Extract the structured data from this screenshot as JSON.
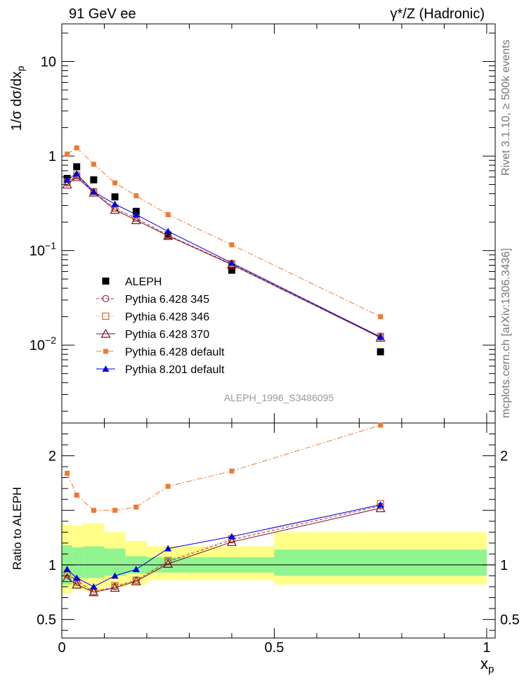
{
  "header": {
    "left_title": "91 GeV ee",
    "right_title": "γ*/Z (Hadronic)"
  },
  "side_text": {
    "rivet": "Rivet 3.1.10, ≥ 500k events",
    "mcplots": "mcplots.cern.ch [arXiv:1306.3436]"
  },
  "watermark": "ALEPH_1996_S3486095",
  "chart_data": {
    "type": "line",
    "upper": {
      "ylabel": "1/σ dσ/dx_p",
      "yscale": "log",
      "ylim": [
        0.0015,
        25
      ],
      "yticks": [
        {
          "value": 10,
          "label": "10"
        },
        {
          "value": 1,
          "label": "1"
        },
        {
          "value": 0.1,
          "label": "10^-1"
        },
        {
          "value": 0.01,
          "label": "10^-2"
        }
      ]
    },
    "lower": {
      "ylabel": "Ratio to ALEPH",
      "ylim": [
        0.33,
        2.3
      ],
      "yticks": [
        {
          "value": 2,
          "label": "2"
        },
        {
          "value": 1,
          "label": "1"
        },
        {
          "value": 0.5,
          "label": "0.5"
        }
      ]
    },
    "xlabel": "x_p",
    "xlim": [
      0,
      1.02
    ],
    "xticks": [
      {
        "value": 0,
        "label": "0"
      },
      {
        "value": 0.5,
        "label": "0.5"
      },
      {
        "value": 1,
        "label": "1"
      }
    ],
    "x": [
      0.0125,
      0.035,
      0.075,
      0.125,
      0.175,
      0.25,
      0.4,
      0.75
    ],
    "band_edges": [
      0,
      0.025,
      0.05,
      0.1,
      0.15,
      0.2,
      0.3,
      0.5,
      1.0
    ],
    "band_inner": [
      [
        0.82,
        1.18
      ],
      [
        0.88,
        1.16
      ],
      [
        0.88,
        1.17
      ],
      [
        0.9,
        1.15
      ],
      [
        0.92,
        1.08
      ],
      [
        0.93,
        1.07
      ],
      [
        0.93,
        1.07
      ],
      [
        0.9,
        1.14
      ]
    ],
    "band_outer": [
      [
        0.74,
        1.37
      ],
      [
        0.78,
        1.36
      ],
      [
        0.76,
        1.38
      ],
      [
        0.8,
        1.3
      ],
      [
        0.82,
        1.22
      ],
      [
        0.86,
        1.17
      ],
      [
        0.86,
        1.17
      ],
      [
        0.82,
        1.3
      ]
    ],
    "series": [
      {
        "name": "ALEPH",
        "color": "#000000",
        "marker": "square",
        "dash": "",
        "line": false,
        "values": [
          0.58,
          0.77,
          0.56,
          0.37,
          0.26,
          0.145,
          0.062,
          0.0085
        ],
        "ratio": [
          1,
          1,
          1,
          1,
          1,
          1,
          1,
          1
        ]
      },
      {
        "name": "Pythia 6.428 345",
        "color": "#a0304a",
        "marker": "circle-open",
        "dash": "4,3",
        "line": true,
        "values": [
          0.52,
          0.62,
          0.42,
          0.28,
          0.22,
          0.145,
          0.072,
          0.0122
        ],
        "ratio": [
          0.91,
          0.86,
          0.75,
          0.8,
          0.86,
          1.03,
          1.23,
          1.54
        ]
      },
      {
        "name": "Pythia 6.428 346",
        "color": "#c87030",
        "marker": "square-open",
        "dash": "1,3",
        "line": true,
        "values": [
          0.53,
          0.63,
          0.42,
          0.28,
          0.22,
          0.147,
          0.073,
          0.0124
        ],
        "ratio": [
          0.92,
          0.84,
          0.76,
          0.81,
          0.86,
          1.04,
          1.24,
          1.56
        ]
      },
      {
        "name": "Pythia 6.428 370",
        "color": "#7a1020",
        "marker": "triangle-open",
        "dash": "",
        "line": true,
        "values": [
          0.5,
          0.6,
          0.41,
          0.27,
          0.21,
          0.143,
          0.071,
          0.012
        ],
        "ratio": [
          0.88,
          0.82,
          0.75,
          0.79,
          0.85,
          1.01,
          1.21,
          1.52
        ]
      },
      {
        "name": "Pythia 6.428 default",
        "color": "#f07830",
        "marker": "square-small",
        "dash": "8,3,2,3",
        "line": true,
        "values": [
          1.05,
          1.22,
          0.82,
          0.52,
          0.38,
          0.24,
          0.115,
          0.02
        ],
        "ratio": [
          1.84,
          1.64,
          1.5,
          1.5,
          1.53,
          1.72,
          1.86,
          2.28
        ]
      },
      {
        "name": "Pythia 8.201 default",
        "color": "#0000e0",
        "marker": "triangle-filled",
        "dash": "",
        "line": true,
        "values": [
          0.56,
          0.65,
          0.42,
          0.31,
          0.24,
          0.16,
          0.074,
          0.0122
        ],
        "ratio": [
          0.96,
          0.88,
          0.8,
          0.9,
          0.96,
          1.15,
          1.26,
          1.55
        ]
      }
    ]
  }
}
